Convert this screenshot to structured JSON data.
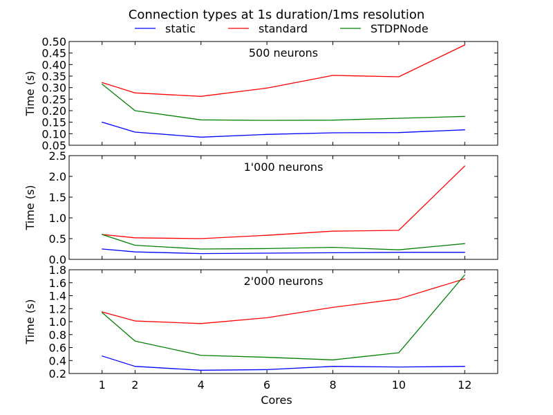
{
  "page": {
    "title": "Connection types at 1s duration/1ms resolution",
    "legend": [
      {
        "name": "static",
        "color": "#0000ff"
      },
      {
        "name": "standard",
        "color": "#ff0000"
      },
      {
        "name": "STDPNode",
        "color": "#008000"
      }
    ]
  },
  "chart_data": [
    {
      "type": "line",
      "title": "Connection types at 1s duration/1ms resolution",
      "subtitle": "500 neurons",
      "xlabel": "",
      "ylabel": "Time (s)",
      "x": [
        1,
        2,
        4,
        6,
        8,
        10,
        12
      ],
      "xlim": [
        0,
        13
      ],
      "ylim": [
        0.05,
        0.5
      ],
      "yticks": [
        "0.05",
        "0.10",
        "0.15",
        "0.20",
        "0.25",
        "0.30",
        "0.35",
        "0.40",
        "0.45",
        "0.50"
      ],
      "grid": false,
      "legend_position": "top",
      "series": [
        {
          "name": "static",
          "color": "#0000ff",
          "values": [
            0.15,
            0.107,
            0.085,
            0.097,
            0.104,
            0.105,
            0.117
          ]
        },
        {
          "name": "standard",
          "color": "#ff0000",
          "values": [
            0.322,
            0.277,
            0.262,
            0.298,
            0.353,
            0.347,
            0.485
          ]
        },
        {
          "name": "STDPNode",
          "color": "#008000",
          "values": [
            0.315,
            0.2,
            0.16,
            0.158,
            0.159,
            0.167,
            0.175
          ]
        }
      ]
    },
    {
      "type": "line",
      "title": "",
      "subtitle": "1'000 neurons",
      "xlabel": "",
      "ylabel": "Time (s)",
      "x": [
        1,
        2,
        4,
        6,
        8,
        10,
        12
      ],
      "xlim": [
        0,
        13
      ],
      "ylim": [
        0,
        2.5
      ],
      "yticks": [
        "0.0",
        "0.5",
        "1.0",
        "1.5",
        "2.0",
        "2.5"
      ],
      "grid": false,
      "legend_position": "top",
      "series": [
        {
          "name": "static",
          "color": "#0000ff",
          "values": [
            0.25,
            0.18,
            0.14,
            0.15,
            0.16,
            0.17,
            0.17
          ]
        },
        {
          "name": "standard",
          "color": "#ff0000",
          "values": [
            0.6,
            0.52,
            0.5,
            0.58,
            0.68,
            0.7,
            2.25
          ]
        },
        {
          "name": "STDPNode",
          "color": "#008000",
          "values": [
            0.6,
            0.34,
            0.25,
            0.26,
            0.29,
            0.23,
            0.38
          ]
        }
      ]
    },
    {
      "type": "line",
      "title": "",
      "subtitle": "2'000 neurons",
      "xlabel": "Cores",
      "ylabel": "Time (s)",
      "x": [
        1,
        2,
        4,
        6,
        8,
        10,
        12
      ],
      "xticks": [
        "1",
        "2",
        "4",
        "6",
        "8",
        "10",
        "12"
      ],
      "xlim": [
        0,
        13
      ],
      "ylim": [
        0.2,
        1.8
      ],
      "yticks": [
        "0.2",
        "0.4",
        "0.6",
        "0.8",
        "1.0",
        "1.2",
        "1.4",
        "1.6",
        "1.8"
      ],
      "grid": false,
      "legend_position": "top",
      "series": [
        {
          "name": "static",
          "color": "#0000ff",
          "values": [
            0.47,
            0.31,
            0.25,
            0.26,
            0.31,
            0.3,
            0.31
          ]
        },
        {
          "name": "standard",
          "color": "#ff0000",
          "values": [
            1.15,
            1.01,
            0.97,
            1.06,
            1.22,
            1.35,
            1.66
          ]
        },
        {
          "name": "STDPNode",
          "color": "#008000",
          "values": [
            1.14,
            0.7,
            0.48,
            0.45,
            0.41,
            0.52,
            1.72
          ]
        }
      ]
    }
  ]
}
